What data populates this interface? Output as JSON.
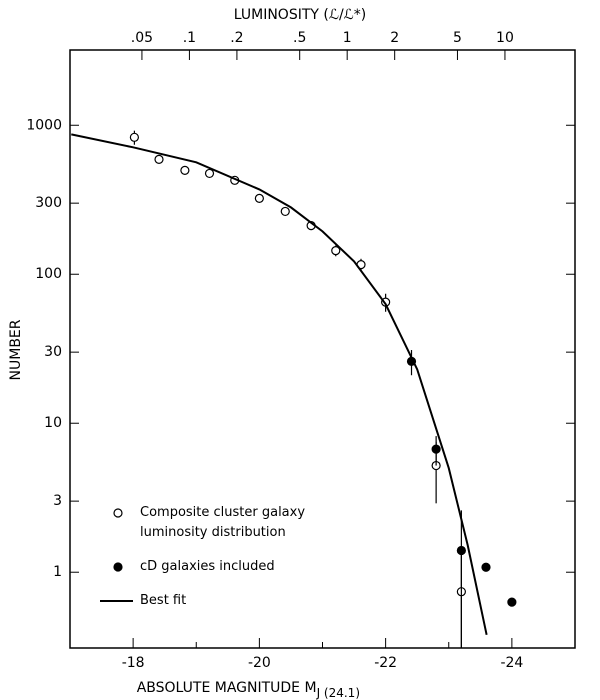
{
  "chart_data": {
    "type": "scatter",
    "title": "LUMINOSITY (ℒ/ℒ*)",
    "xlabel": "ABSOLUTE MAGNITUDE M",
    "xlabel_sub": "J (24.1)",
    "ylabel": "NUMBER",
    "xlim": [
      -17,
      -25
    ],
    "xticks": [
      -18,
      -20,
      -22,
      -24
    ],
    "xminorticks": [
      -19,
      -21,
      -23
    ],
    "ylim": [
      0.31,
      3200
    ],
    "yticks": [
      1,
      3,
      10,
      30,
      100,
      300,
      1000
    ],
    "ylog": true,
    "x2lim": [
      0.0175,
      27.8
    ],
    "x2log": true,
    "x2ticks": [
      {
        "value": 0.05,
        "label": ".05"
      },
      {
        "value": 0.1,
        "label": ".1"
      },
      {
        "value": 0.2,
        "label": ".2"
      },
      {
        "value": 0.5,
        "label": ".5"
      },
      1,
      2,
      5,
      10
    ],
    "legend": "lower left",
    "series": [
      {
        "name": "Composite cluster galaxy luminosity distribution",
        "style": "open",
        "color": "#000000",
        "x": [
          -18.02,
          -18.41,
          -18.82,
          -19.21,
          -19.61,
          -20.0,
          -20.41,
          -20.82,
          -21.21,
          -21.61,
          -22.0,
          -22.8,
          -23.2
        ],
        "values": [
          830,
          590,
          498,
          475,
          427,
          323,
          264,
          212,
          144,
          116,
          65,
          5.2,
          0.74
        ],
        "errors": [
          90,
          25,
          22,
          22,
          20,
          18,
          16,
          14,
          12,
          11,
          9,
          2.3,
          0.74
        ]
      },
      {
        "name": "cD galaxies included",
        "style": "filled",
        "color": "#000000",
        "x": [
          -22.41,
          -22.8,
          -23.2,
          -23.59,
          -24.0
        ],
        "values": [
          26,
          6.7,
          1.4,
          1.08,
          0.63
        ],
        "errors": [
          5,
          1.5,
          1.2,
          null,
          null
        ]
      },
      {
        "name": "Best fit",
        "style": "line",
        "color": "#000000",
        "x": [
          -17.02,
          -18,
          -19,
          -20,
          -20.5,
          -21,
          -21.5,
          -22,
          -22.5,
          -23,
          -23.3,
          -23.6
        ],
        "values": [
          869,
          711,
          564,
          371,
          281,
          194,
          122,
          63,
          23,
          5.0,
          1.52,
          0.38
        ]
      }
    ]
  }
}
